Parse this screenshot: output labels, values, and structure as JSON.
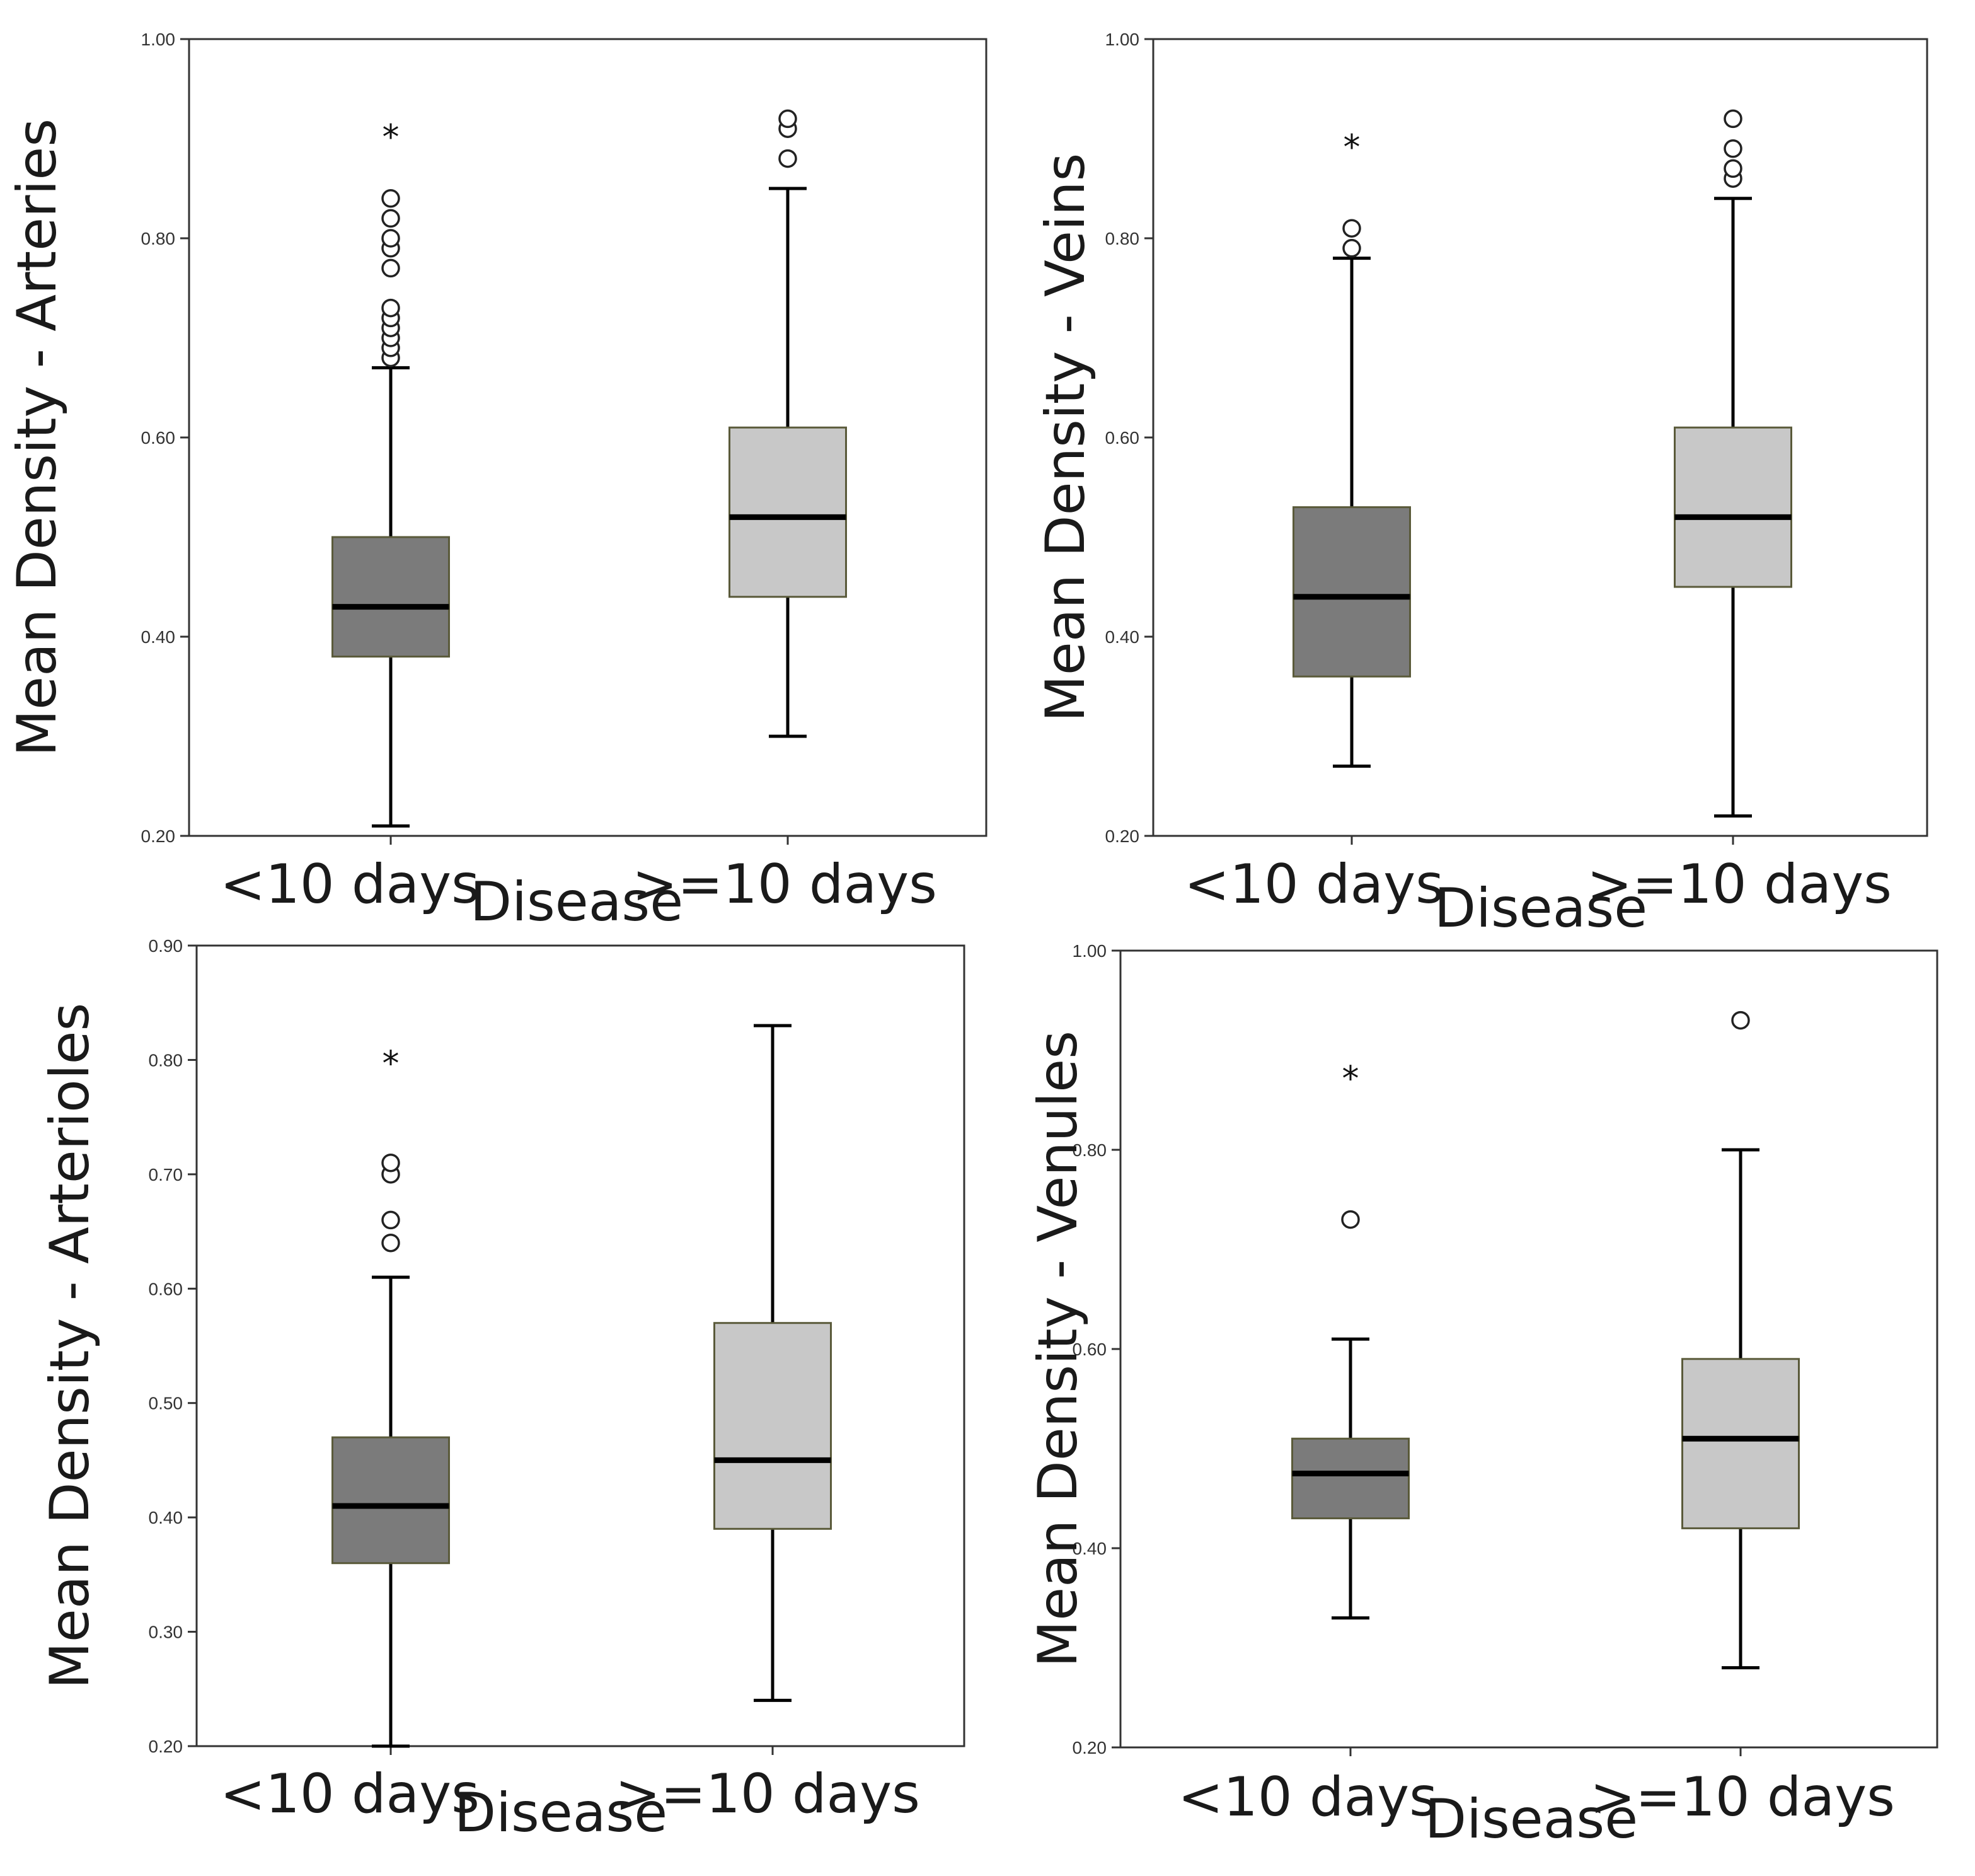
{
  "colors": {
    "short_box": "#7b7b7b",
    "long_box": "#c8c8c8",
    "box_edge": "#5a5a3a",
    "median": "#000000",
    "whisker": "#000000",
    "frame": "#333333"
  },
  "chart_data": [
    {
      "type": "boxplot",
      "title": "",
      "ylabel": "Mean Density - Arteries",
      "xlabel": "Disease",
      "categories": [
        "<10 days",
        ">=10 days"
      ],
      "yticks": [
        "0.20",
        "0.40",
        "0.60",
        "0.80",
        "1.00"
      ],
      "ylim": [
        0.2,
        1.0
      ],
      "grid": false,
      "boxes": [
        {
          "category": "<10 days",
          "whisker_low": 0.21,
          "q1": 0.38,
          "median": 0.43,
          "q3": 0.5,
          "whisker_high": 0.67,
          "outliers": [
            0.68,
            0.69,
            0.7,
            0.71,
            0.72,
            0.73,
            0.77,
            0.79,
            0.8,
            0.82,
            0.84
          ],
          "extremes": [
            0.905
          ]
        },
        {
          "category": ">=10 days",
          "whisker_low": 0.3,
          "q1": 0.44,
          "median": 0.52,
          "q3": 0.61,
          "whisker_high": 0.85,
          "outliers": [
            0.88,
            0.91,
            0.92
          ],
          "extremes": []
        }
      ]
    },
    {
      "type": "boxplot",
      "title": "",
      "ylabel": "Mean Density - Veins",
      "xlabel": "Disease",
      "categories": [
        "<10 days",
        ">=10 days"
      ],
      "yticks": [
        "0.20",
        "0.40",
        "0.60",
        "0.80",
        "1.00"
      ],
      "ylim": [
        0.2,
        1.0
      ],
      "grid": false,
      "boxes": [
        {
          "category": "<10 days",
          "whisker_low": 0.27,
          "q1": 0.36,
          "median": 0.44,
          "q3": 0.53,
          "whisker_high": 0.78,
          "outliers": [
            0.79,
            0.81
          ],
          "extremes": [
            0.895
          ]
        },
        {
          "category": ">=10 days",
          "whisker_low": 0.22,
          "q1": 0.45,
          "median": 0.52,
          "q3": 0.61,
          "whisker_high": 0.84,
          "outliers": [
            0.86,
            0.87,
            0.89,
            0.92
          ],
          "extremes": []
        }
      ]
    },
    {
      "type": "boxplot",
      "title": "",
      "ylabel": "Mean Density - Arterioles",
      "xlabel": "Disease",
      "categories": [
        "<10 days",
        ">=10 days"
      ],
      "yticks": [
        "0.20",
        "0.30",
        "0.40",
        "0.50",
        "0.60",
        "0.70",
        "0.80",
        "0.90"
      ],
      "ylim": [
        0.2,
        0.9
      ],
      "grid": false,
      "boxes": [
        {
          "category": "<10 days",
          "whisker_low": 0.2,
          "q1": 0.36,
          "median": 0.41,
          "q3": 0.47,
          "whisker_high": 0.61,
          "outliers": [
            0.64,
            0.66,
            0.7,
            0.71
          ],
          "extremes": [
            0.8
          ]
        },
        {
          "category": ">=10 days",
          "whisker_low": 0.24,
          "q1": 0.39,
          "median": 0.45,
          "q3": 0.57,
          "whisker_high": 0.83,
          "outliers": [],
          "extremes": []
        }
      ]
    },
    {
      "type": "boxplot",
      "title": "",
      "ylabel": "Mean Density - Venules",
      "xlabel": "Disease",
      "categories": [
        "<10 days",
        ">=10 days"
      ],
      "yticks": [
        "0.20",
        "0.40",
        "0.60",
        "0.80",
        "1.00"
      ],
      "ylim": [
        0.2,
        1.0
      ],
      "grid": false,
      "boxes": [
        {
          "category": "<10 days",
          "whisker_low": 0.33,
          "q1": 0.43,
          "median": 0.475,
          "q3": 0.51,
          "whisker_high": 0.61,
          "outliers": [
            0.73
          ],
          "extremes": [
            0.875
          ]
        },
        {
          "category": ">=10 days",
          "whisker_low": 0.28,
          "q1": 0.42,
          "median": 0.51,
          "q3": 0.59,
          "whisker_high": 0.8,
          "outliers": [
            0.93
          ],
          "extremes": []
        }
      ]
    }
  ]
}
